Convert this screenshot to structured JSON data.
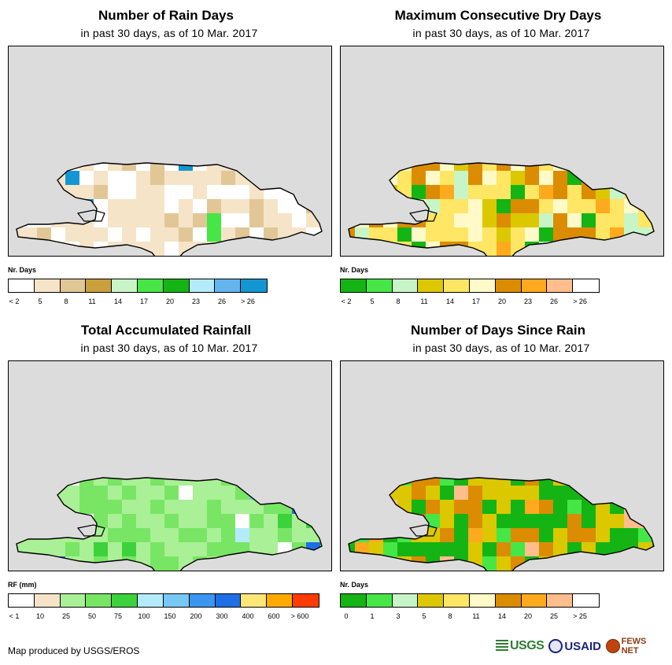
{
  "footer": {
    "credit": "Map produced by USGS/EROS"
  },
  "logos": {
    "usgs": "USGS",
    "usaid": "USAID",
    "fews": "FEWS NET"
  },
  "colors": {
    "background": "#dcdcdc",
    "outline": "#000000"
  },
  "panels": [
    {
      "id": "rain-days",
      "title": "Number of Rain Days",
      "subtitle": "in past 30 days, as of 10 Mar. 2017",
      "legend_title": "Nr. Days",
      "legend_labels": [
        "< 2",
        "5",
        "8",
        "11",
        "14",
        "17",
        "20",
        "23",
        "26",
        "> 26"
      ],
      "legend_colors": [
        "#ffffff",
        "#f5e4c8",
        "#e2c796",
        "#c8a03c",
        "#c8f5c8",
        "#46e646",
        "#14b414",
        "#b4ebfa",
        "#64b4f0",
        "#1496d2"
      ],
      "cells": [
        {
          "color": "#f5e4c8",
          "share": 0.55
        },
        {
          "color": "#ffffff",
          "share": 0.3
        },
        {
          "color": "#e2c796",
          "share": 0.1
        },
        {
          "color": "#46e646",
          "share": 0.02
        },
        {
          "color": "#1496d2",
          "share": 0.02
        },
        {
          "color": "#c8a03c",
          "share": 0.01
        }
      ]
    },
    {
      "id": "dry-days",
      "title": "Maximum Consecutive Dry Days",
      "subtitle": "in past 30 days, as of 10 Mar. 2017",
      "legend_title": "Nr. Days",
      "legend_labels": [
        "< 2",
        "5",
        "8",
        "11",
        "14",
        "17",
        "20",
        "23",
        "26",
        "> 26"
      ],
      "legend_colors": [
        "#14b414",
        "#46e646",
        "#c8f5c8",
        "#dcc800",
        "#ffe664",
        "#fffac8",
        "#dc8c00",
        "#ffaa1e",
        "#ffbe8c",
        "#ffffff"
      ],
      "cells": [
        {
          "color": "#ffe664",
          "share": 0.3
        },
        {
          "color": "#dc8c00",
          "share": 0.2
        },
        {
          "color": "#fffac8",
          "share": 0.15
        },
        {
          "color": "#14b414",
          "share": 0.12
        },
        {
          "color": "#dcc800",
          "share": 0.1
        },
        {
          "color": "#c8f5c8",
          "share": 0.08
        },
        {
          "color": "#ffaa1e",
          "share": 0.05
        }
      ]
    },
    {
      "id": "rainfall",
      "title": "Total Accumulated Rainfall",
      "subtitle": "in past 30 days, as of 10 Mar. 2017",
      "legend_title": "RF (mm)",
      "legend_labels": [
        "< 1",
        "10",
        "25",
        "50",
        "75",
        "100",
        "150",
        "200",
        "300",
        "400",
        "600",
        "> 600"
      ],
      "legend_colors": [
        "#ffffff",
        "#f5e4c8",
        "#aaf096",
        "#78e664",
        "#3cd23c",
        "#b4ebfa",
        "#78c8f5",
        "#3c96f0",
        "#1e6ee6",
        "#ffe678",
        "#ffaa00",
        "#ff3c00"
      ],
      "cells": [
        {
          "color": "#aaf096",
          "share": 0.55
        },
        {
          "color": "#78e664",
          "share": 0.25
        },
        {
          "color": "#3cd23c",
          "share": 0.08
        },
        {
          "color": "#ffffff",
          "share": 0.06
        },
        {
          "color": "#78c8f5",
          "share": 0.03
        },
        {
          "color": "#1e6ee6",
          "share": 0.02
        },
        {
          "color": "#b4ebfa",
          "share": 0.01
        }
      ]
    },
    {
      "id": "days-since-rain",
      "title": "Number of Days Since Rain",
      "subtitle": "in past 30 days, as of 10 Mar. 2017",
      "legend_title": "Nr. Days",
      "legend_labels": [
        "0",
        "1",
        "3",
        "5",
        "8",
        "11",
        "14",
        "20",
        "25",
        "> 25"
      ],
      "legend_colors": [
        "#14b414",
        "#46e646",
        "#c8f5c8",
        "#dcc800",
        "#ffe664",
        "#fffac8",
        "#dc8c00",
        "#ffaa1e",
        "#ffbe8c",
        "#ffffff"
      ],
      "cells": [
        {
          "color": "#14b414",
          "share": 0.3
        },
        {
          "color": "#dcc800",
          "share": 0.25
        },
        {
          "color": "#dc8c00",
          "share": 0.2
        },
        {
          "color": "#ffaa1e",
          "share": 0.12
        },
        {
          "color": "#46e646",
          "share": 0.08
        },
        {
          "color": "#ffbe8c",
          "share": 0.05
        }
      ]
    }
  ]
}
